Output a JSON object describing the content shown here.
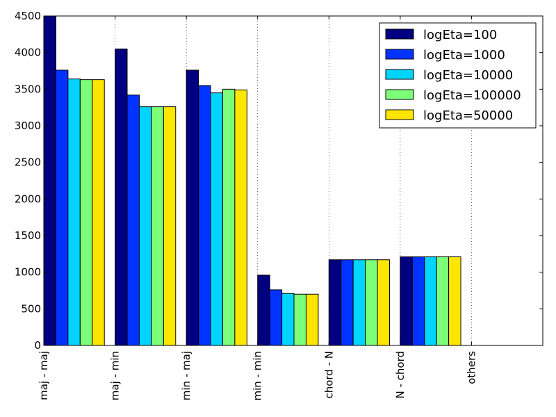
{
  "chart_data": {
    "type": "bar",
    "categories": [
      "maj - maj",
      "maj - min",
      "min - maj",
      "min - min",
      "chord - N",
      "N - chord",
      "others"
    ],
    "series": [
      {
        "name": "logEta=100",
        "color": "#000080",
        "values": [
          4500,
          4050,
          3760,
          960,
          1170,
          1210,
          0
        ]
      },
      {
        "name": "logEta=1000",
        "color": "#0033ff",
        "values": [
          3760,
          3420,
          3550,
          760,
          1170,
          1210,
          0
        ]
      },
      {
        "name": "logEta=10000",
        "color": "#00d4ff",
        "values": [
          3640,
          3260,
          3450,
          710,
          1170,
          1210,
          0
        ]
      },
      {
        "name": "logEta=100000",
        "color": "#7dff7a",
        "values": [
          3630,
          3260,
          3500,
          700,
          1170,
          1210,
          0
        ]
      },
      {
        "name": "logEta=50000",
        "color": "#ffe600",
        "values": [
          3630,
          3260,
          3490,
          700,
          1170,
          1210,
          0
        ]
      }
    ],
    "ylim": [
      0,
      4500
    ],
    "yticks": [
      0,
      500,
      1000,
      1500,
      2000,
      2500,
      3000,
      3500,
      4000,
      4500
    ],
    "xlim": [
      0,
      7
    ],
    "grid": "x-dotted",
    "legend": "top-right",
    "title": "",
    "xlabel": "",
    "ylabel": ""
  }
}
